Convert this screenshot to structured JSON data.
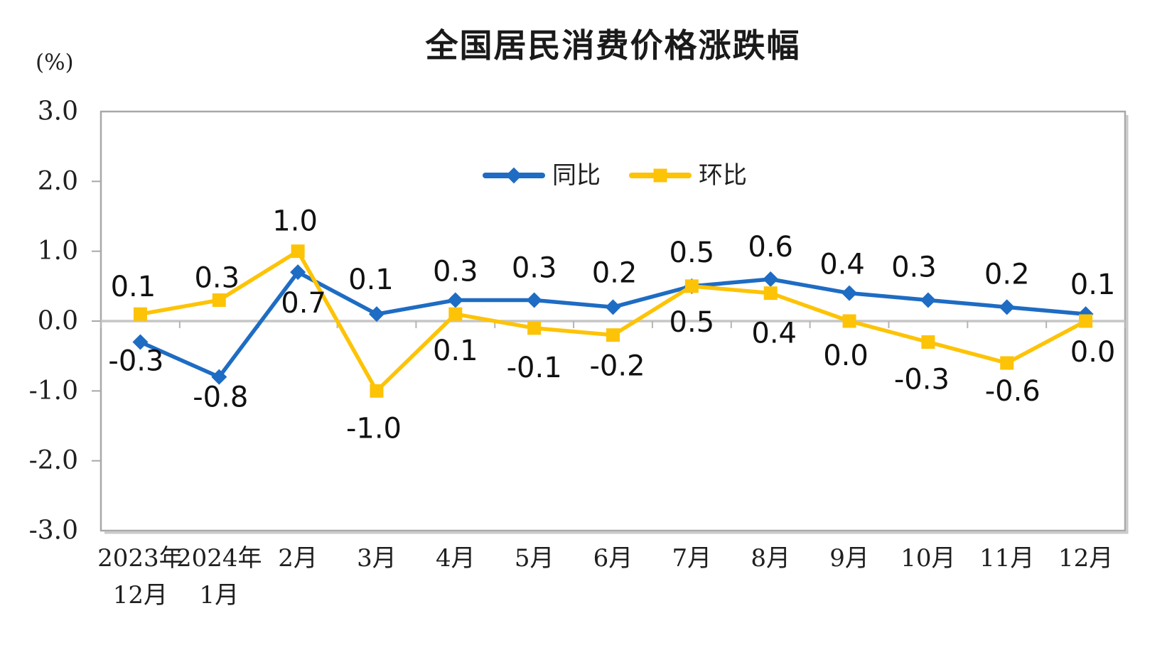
{
  "chart": {
    "title": "全国居民消费价格涨跌幅",
    "unit_label": "(%)",
    "legend": [
      {
        "label": "同比",
        "color": "#1e6cc3",
        "marker": "diamond"
      },
      {
        "label": "环比",
        "color": "#fdc306",
        "marker": "square"
      }
    ]
  },
  "chart_data": {
    "type": "line",
    "title": "全国居民消费价格涨跌幅",
    "ylabel": "(%)",
    "ylim": [
      -3.0,
      3.0
    ],
    "y_ticks": [
      "3.0",
      "2.0",
      "1.0",
      "0.0",
      "-1.0",
      "-2.0",
      "-3.0"
    ],
    "grid": false,
    "legend_position": "top-center-inside",
    "categories": [
      "2023年12月",
      "2024年1月",
      "2月",
      "3月",
      "4月",
      "5月",
      "6月",
      "7月",
      "8月",
      "9月",
      "10月",
      "11月",
      "12月"
    ],
    "categories_display": [
      [
        "2023年",
        "12月"
      ],
      [
        "2024年",
        "1月"
      ],
      [
        "2月"
      ],
      [
        "3月"
      ],
      [
        "4月"
      ],
      [
        "5月"
      ],
      [
        "6月"
      ],
      [
        "7月"
      ],
      [
        "8月"
      ],
      [
        "9月"
      ],
      [
        "10月"
      ],
      [
        "11月"
      ],
      [
        "12月"
      ]
    ],
    "series": [
      {
        "name": "同比",
        "color": "#1e6cc3",
        "marker": "diamond",
        "values": [
          -0.3,
          -0.8,
          0.7,
          0.1,
          0.3,
          0.3,
          0.2,
          0.5,
          0.6,
          0.4,
          0.3,
          0.2,
          0.1
        ],
        "labels": [
          "-0.3",
          "-0.8",
          "0.7",
          "0.1",
          "0.3",
          "0.3",
          "0.2",
          "0.5",
          "0.6",
          "0.4",
          "0.3",
          "0.2",
          "0.1"
        ],
        "label_dx": [
          -6,
          2,
          8,
          -8,
          0,
          0,
          2,
          0,
          0,
          -10,
          -20,
          0,
          10
        ],
        "label_dy": [
          27,
          29,
          44,
          -48,
          -40,
          -45,
          -48,
          -47,
          -45,
          -40,
          -46,
          -46,
          -41
        ]
      },
      {
        "name": "环比",
        "color": "#fdc306",
        "marker": "square",
        "values": [
          0.1,
          0.3,
          1.0,
          -1.0,
          0.1,
          -0.1,
          -0.2,
          0.5,
          0.4,
          0.0,
          -0.3,
          -0.6,
          0.0
        ],
        "labels": [
          "0.1",
          "0.3",
          "1.0",
          "-1.0",
          "0.1",
          "-0.1",
          "-0.2",
          "0.5",
          "0.4",
          "0.0",
          "-0.3",
          "-0.6",
          "0.0"
        ],
        "label_dx": [
          -10,
          -3,
          -4,
          -4,
          0,
          0,
          6,
          0,
          5,
          -5,
          -9,
          8,
          10
        ],
        "label_dy": [
          -38,
          -31,
          -42,
          53,
          52,
          56,
          44,
          51,
          57,
          49,
          53,
          40,
          44
        ]
      }
    ]
  }
}
